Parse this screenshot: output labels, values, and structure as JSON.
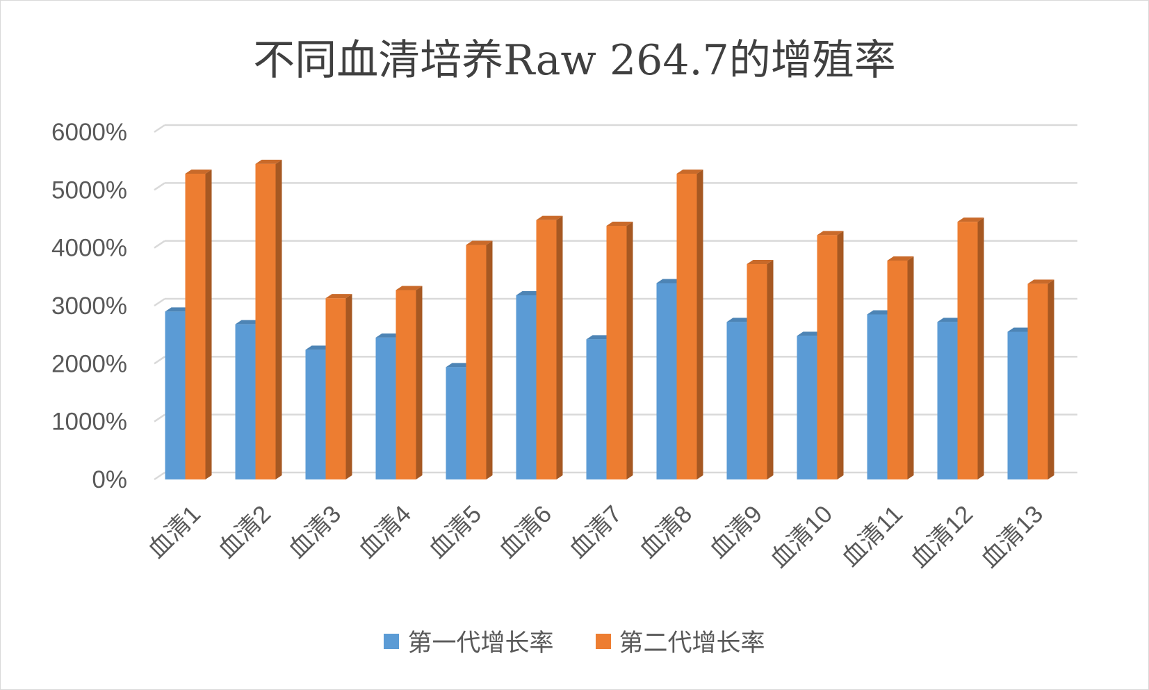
{
  "chart_data": {
    "type": "bar",
    "title": "不同血清培养Raw 264.7的增殖率",
    "categories": [
      "血清1",
      "血清2",
      "血清3",
      "血清4",
      "血清5",
      "血清6",
      "血清7",
      "血清8",
      "血清9",
      "血清10",
      "血清11",
      "血清12",
      "血清13"
    ],
    "series": [
      {
        "name": "第一代增长率",
        "color": "#5b9bd5",
        "values": [
          2900,
          2680,
          2240,
          2450,
          1940,
          3180,
          2420,
          3390,
          2720,
          2480,
          2850,
          2720,
          2550
        ]
      },
      {
        "name": "第二代增长率",
        "color": "#ed7d31",
        "values": [
          5280,
          5450,
          3130,
          3270,
          4050,
          4480,
          4380,
          5280,
          3720,
          4220,
          3780,
          4450,
          3380
        ]
      }
    ],
    "y_ticks": [
      "0%",
      "1000%",
      "2000%",
      "3000%",
      "4000%",
      "5000%",
      "6000%"
    ],
    "ylim": [
      0,
      6000
    ],
    "grid": true,
    "legend_position": "bottom",
    "style": "3d-clustered-column"
  }
}
